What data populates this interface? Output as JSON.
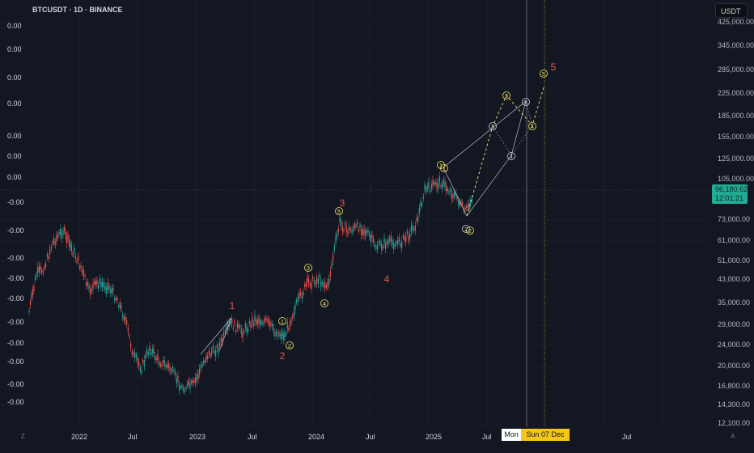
{
  "header": {
    "title": "BTCUSDT · 1D · BINANCE"
  },
  "currency_button": "USDT",
  "left_axis": [
    "0.00",
    "0.00",
    "0.00",
    "0.00",
    "0.00",
    "0.00",
    "0.00",
    "-0.00",
    "-0.00",
    "-0.00",
    "-0.00",
    "-0.00",
    "-0.00",
    "-0.00",
    "-0.00",
    "-0.00",
    "-0.00"
  ],
  "right_axis": [
    "425,000.00",
    "345,000.00",
    "285,000.00",
    "225,000.00",
    "185,000.00",
    "155,000.00",
    "125,000.00",
    "105,000.00",
    "73,000.00",
    "61,000.00",
    "51,000.00",
    "43,000.00",
    "35,000.00",
    "29,000.00",
    "24,000.00",
    "20,000.00",
    "16,800.00",
    "14,300.00",
    "12,100.00"
  ],
  "time_axis": [
    "2022",
    "Jul",
    "2023",
    "Jul",
    "2024",
    "Jul",
    "2025",
    "Jul",
    "Jul"
  ],
  "current_price": {
    "value": "96,180.62",
    "countdown": "12:01:21"
  },
  "crosshair": {
    "day_label": "Mon",
    "date_label": "Sun 07 Dec '25"
  },
  "waves": {
    "major": [
      "1",
      "2",
      "3",
      "4",
      "5"
    ],
    "minor_a": [
      "1",
      "2",
      "3",
      "4",
      "1",
      "2"
    ],
    "minor_b": [
      "1",
      "2",
      "3",
      "4",
      "5"
    ],
    "minor_c": [
      "2",
      "3",
      "4",
      "5"
    ]
  },
  "corner_marks": {
    "left": "Z",
    "right": "A"
  },
  "colors": {
    "background": "#131722",
    "candle_up": "#26a69a",
    "candle_down": "#ef5350",
    "wave_major": "#ef5350",
    "wave_yellow": "#f5e663",
    "wave_white": "#d1d4dc",
    "price_badge": "#22ab94",
    "crosshair_date": "#f5c518"
  }
}
